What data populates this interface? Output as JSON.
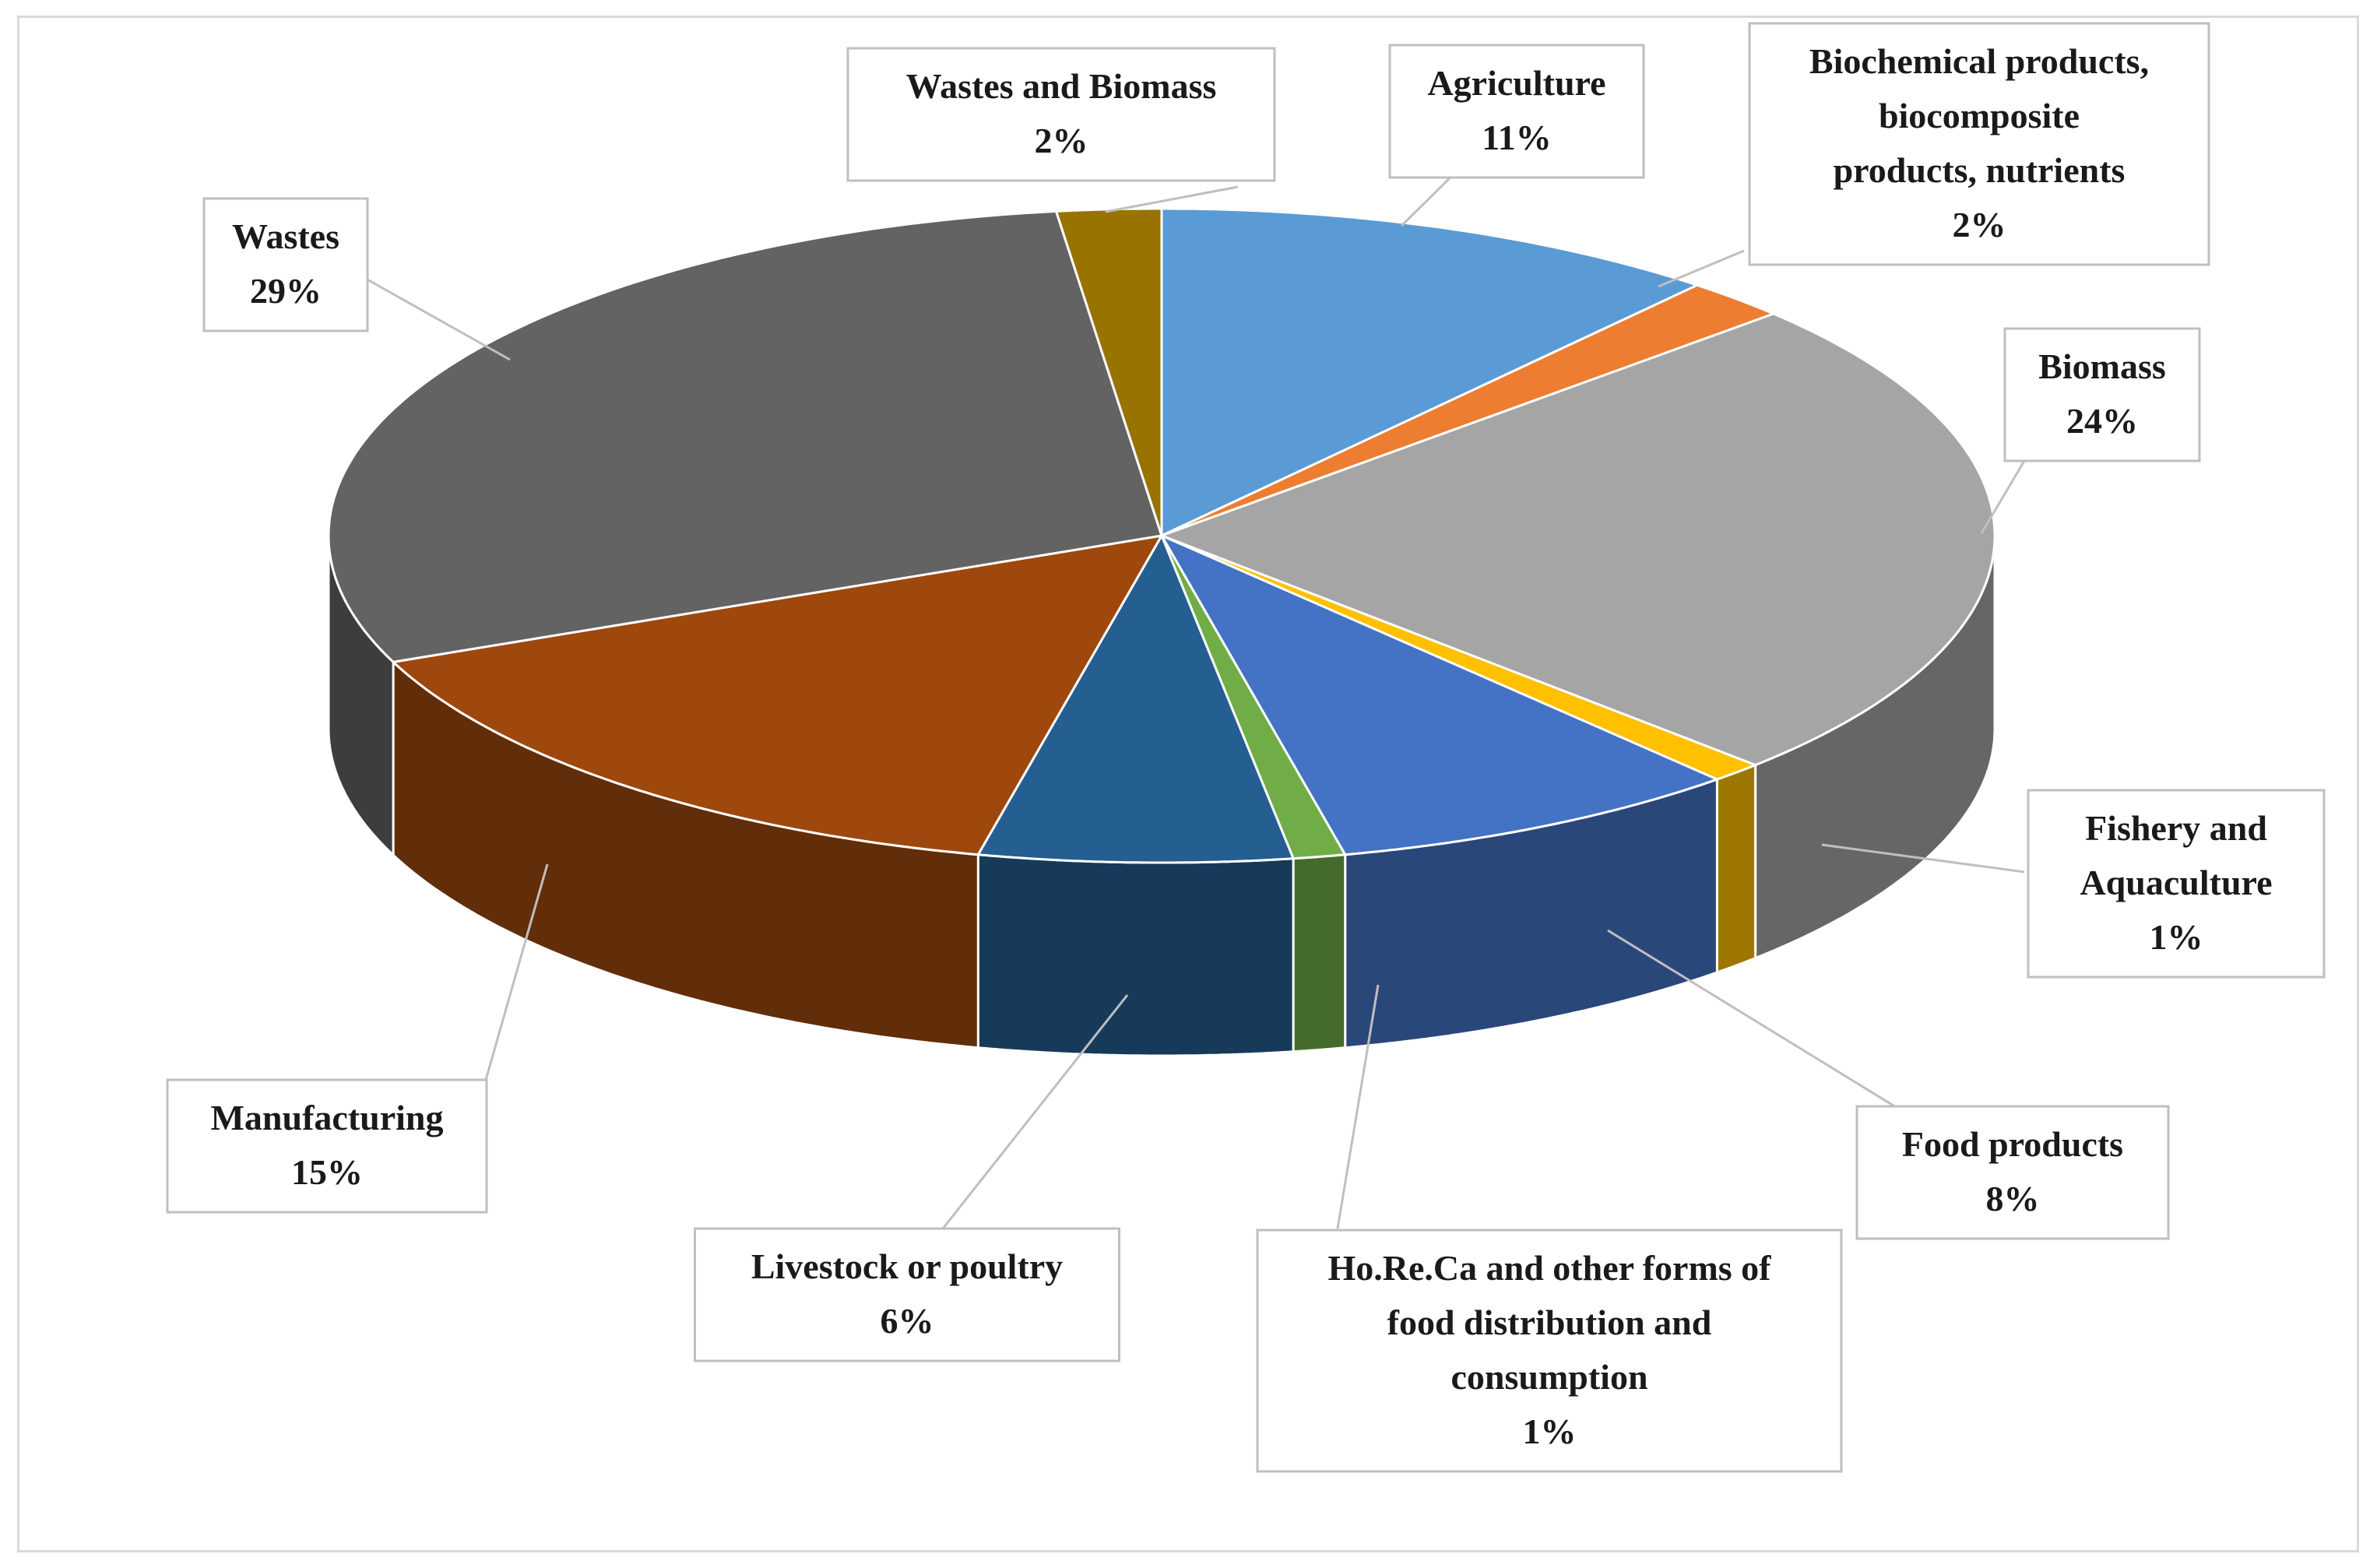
{
  "chart_data": {
    "type": "pie",
    "style": "3d",
    "title": "",
    "slices": [
      {
        "label": "Agriculture",
        "value": 11,
        "value_label": "11%",
        "color": "#5b9bd5"
      },
      {
        "label": "Biochemical products, biocomposite products, nutrients",
        "value_label": "2%",
        "value": 2,
        "color": "#ed7d31"
      },
      {
        "label": "Biomass",
        "value": 24,
        "value_label": "24%",
        "color": "#a5a5a5"
      },
      {
        "label": "Fishery and Aquaculture",
        "value": 1,
        "value_label": "1%",
        "color": "#ffc000"
      },
      {
        "label": "Food products",
        "value": 8,
        "value_label": "8%",
        "color": "#4472c4"
      },
      {
        "label": "Ho.Re.Ca and other forms of food distribution and consumption",
        "value": 1,
        "value_label": "1%",
        "color": "#70ad47"
      },
      {
        "label": "Livestock or poultry",
        "value": 6,
        "value_label": "6%",
        "color": "#255e91"
      },
      {
        "label": "Manufacturing",
        "value": 15,
        "value_label": "15%",
        "color": "#9e480e"
      },
      {
        "label": "Wastes",
        "value": 29,
        "value_label": "29%",
        "color": "#636363"
      },
      {
        "label": "Wastes and Biomass",
        "value": 2,
        "value_label": "2%",
        "color": "#997300"
      }
    ]
  }
}
